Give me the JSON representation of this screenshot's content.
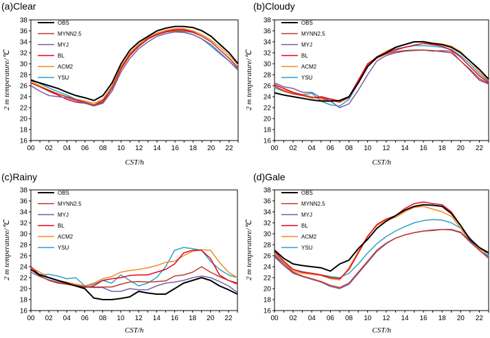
{
  "chart_data": [
    {
      "type": "line",
      "title": "(a)Clear",
      "xlabel": "CST/h",
      "ylabel": "2 m temperature/℃",
      "x": [
        0,
        1,
        2,
        3,
        4,
        5,
        6,
        7,
        8,
        9,
        10,
        11,
        12,
        13,
        14,
        15,
        16,
        17,
        18,
        19,
        20,
        21,
        22,
        23
      ],
      "x_tick_labels": [
        "00",
        "02",
        "04",
        "06",
        "08",
        "10",
        "12",
        "14",
        "16",
        "18",
        "20",
        "22"
      ],
      "x_tick_values": [
        0,
        2,
        4,
        6,
        8,
        10,
        12,
        14,
        16,
        18,
        20,
        22
      ],
      "xlim": [
        0,
        23
      ],
      "ylim": [
        16,
        38
      ],
      "y_ticks": [
        16,
        18,
        20,
        22,
        24,
        26,
        28,
        30,
        32,
        34,
        36,
        38
      ],
      "legend": "top-left",
      "series": [
        {
          "name": "OBS",
          "color": "#000000",
          "values": [
            27,
            26.5,
            26,
            25.5,
            24.8,
            24.2,
            23.8,
            23.3,
            24.2,
            26.5,
            30,
            32.5,
            34,
            35,
            36,
            36.5,
            36.8,
            36.8,
            36.6,
            36,
            35,
            33.5,
            32,
            30
          ]
        },
        {
          "name": "MYNN2.5",
          "color": "#c0392b",
          "values": [
            26.5,
            25.8,
            25.2,
            24.5,
            24,
            23.5,
            23,
            22.5,
            23,
            25.5,
            29,
            31.5,
            33.2,
            34.5,
            35.3,
            35.8,
            36,
            36,
            35.7,
            35,
            34,
            32.5,
            31,
            29.2
          ]
        },
        {
          "name": "MYJ",
          "color": "#7b5ba6",
          "values": [
            26,
            25,
            24.2,
            24,
            23.8,
            23.3,
            22.8,
            22.3,
            22.8,
            25,
            28.5,
            31,
            32.8,
            34,
            35,
            35.5,
            35.8,
            35.7,
            35.3,
            34.5,
            33.5,
            32,
            30.5,
            28.8
          ]
        },
        {
          "name": "BL",
          "color": "#e8001c",
          "values": [
            26.5,
            25.8,
            25,
            24.3,
            23.5,
            23,
            22.8,
            22.5,
            23.3,
            25.5,
            29.2,
            31.7,
            33.3,
            34.6,
            35.4,
            35.9,
            36.2,
            36.2,
            35.8,
            35,
            34,
            32.5,
            31,
            29.3
          ]
        },
        {
          "name": "ACM2",
          "color": "#f28b1e",
          "values": [
            26.8,
            26,
            25.2,
            24.5,
            24,
            23.5,
            23.2,
            22.8,
            23.5,
            26,
            29.5,
            32,
            33.6,
            34.8,
            35.6,
            36.1,
            36.4,
            36.4,
            36,
            35.3,
            34.3,
            33,
            31.5,
            29.8
          ]
        },
        {
          "name": "YSU",
          "color": "#2aa3c4",
          "values": [
            27.2,
            26.4,
            25.6,
            24.9,
            24.3,
            23.5,
            22.8,
            22.4,
            23,
            25.8,
            29.3,
            31.8,
            33.4,
            34.5,
            35.3,
            35.8,
            36,
            35.8,
            35.3,
            34.5,
            33.2,
            31.8,
            30.5,
            29
          ]
        }
      ]
    },
    {
      "type": "line",
      "title": "(b)Cloudy",
      "xlabel": "CST/h",
      "ylabel": "2 m temperature/℃",
      "x": [
        0,
        1,
        2,
        3,
        4,
        5,
        6,
        7,
        8,
        9,
        10,
        11,
        12,
        13,
        14,
        15,
        16,
        17,
        18,
        19,
        20,
        21,
        22,
        23
      ],
      "x_tick_labels": [
        "00",
        "02",
        "04",
        "06",
        "08",
        "10",
        "12",
        "14",
        "16",
        "18",
        "20",
        "22"
      ],
      "x_tick_values": [
        0,
        2,
        4,
        6,
        8,
        10,
        12,
        14,
        16,
        18,
        20,
        22
      ],
      "xlim": [
        0,
        23
      ],
      "ylim": [
        16,
        38
      ],
      "y_ticks": [
        16,
        18,
        20,
        22,
        24,
        26,
        28,
        30,
        32,
        34,
        36,
        38
      ],
      "legend": "top-left",
      "series": [
        {
          "name": "OBS",
          "color": "#000000",
          "values": [
            24.7,
            24.3,
            24,
            23.7,
            23.4,
            23.2,
            23.2,
            23.3,
            24,
            26.5,
            29.5,
            31.2,
            32,
            33,
            33.5,
            34,
            34,
            33.7,
            33.5,
            33,
            32,
            30.5,
            29,
            27.2
          ]
        },
        {
          "name": "MYNN2.5",
          "color": "#c0392b",
          "values": [
            26,
            25,
            24.5,
            24.2,
            23.8,
            23.8,
            23.5,
            23,
            23.8,
            26.5,
            29.5,
            31,
            31.8,
            32.2,
            32.4,
            32.5,
            32.5,
            32.4,
            32.2,
            32,
            30.5,
            29,
            27.3,
            26.4
          ]
        },
        {
          "name": "MYJ",
          "color": "#7b5ba6",
          "values": [
            26.5,
            25.8,
            25.5,
            24.8,
            24.8,
            23.8,
            23.2,
            22,
            22.7,
            25.2,
            28,
            30.5,
            31.5,
            32,
            32.3,
            32.4,
            32.5,
            32.3,
            32.4,
            32.3,
            30.5,
            28.8,
            27,
            26.3
          ]
        },
        {
          "name": "BL",
          "color": "#e8001c",
          "values": [
            26.2,
            25.5,
            24.8,
            24.3,
            23.8,
            24,
            23.6,
            23.2,
            24,
            27,
            30,
            31.2,
            32,
            32.5,
            33,
            33.4,
            33.7,
            33.5,
            33.2,
            32.5,
            31.2,
            29.5,
            27.8,
            26.6
          ]
        },
        {
          "name": "ACM2",
          "color": "#f28b1e",
          "values": [
            25.8,
            25.2,
            24.7,
            24.4,
            24,
            23.5,
            23.2,
            23,
            24,
            26.8,
            29.8,
            31.3,
            32.3,
            33,
            33.5,
            34,
            34.1,
            33.8,
            33.6,
            33.2,
            32.2,
            30.5,
            28.6,
            27
          ]
        },
        {
          "name": "YSU",
          "color": "#2aa3c4",
          "values": [
            25.6,
            25,
            24.6,
            24.4,
            24.6,
            23.2,
            22.5,
            22.3,
            23.5,
            26.5,
            29.8,
            31.3,
            32.2,
            32.7,
            33,
            33.3,
            33.3,
            33.2,
            33,
            32.6,
            31.5,
            30,
            28.2,
            26.8
          ]
        }
      ]
    },
    {
      "type": "line",
      "title": "(c)Rainy",
      "xlabel": "CST/h",
      "ylabel": "2 m temperature/℃",
      "x": [
        0,
        1,
        2,
        3,
        4,
        5,
        6,
        7,
        8,
        9,
        10,
        11,
        12,
        13,
        14,
        15,
        16,
        17,
        18,
        19,
        20,
        21,
        22,
        23
      ],
      "x_tick_labels": [
        "00",
        "02",
        "04",
        "06",
        "08",
        "10",
        "12",
        "14",
        "16",
        "18",
        "20",
        "22"
      ],
      "x_tick_values": [
        0,
        2,
        4,
        6,
        8,
        10,
        12,
        14,
        16,
        18,
        20,
        22
      ],
      "xlim": [
        0,
        23
      ],
      "ylim": [
        16,
        38
      ],
      "y_ticks": [
        16,
        18,
        20,
        22,
        24,
        26,
        28,
        30,
        32,
        34,
        36,
        38
      ],
      "legend": "top-left",
      "series": [
        {
          "name": "OBS",
          "color": "#000000",
          "values": [
            23.5,
            22.5,
            22,
            21.5,
            21,
            20.5,
            20,
            18.3,
            18,
            18,
            18.2,
            18.5,
            19.5,
            19.2,
            19,
            19,
            20,
            21,
            21.5,
            22,
            21.5,
            20.5,
            19.8,
            19
          ]
        },
        {
          "name": "MYNN2.5",
          "color": "#c0392b",
          "values": [
            23.5,
            22.3,
            21.5,
            21,
            20.8,
            20.6,
            20.4,
            20.3,
            20.3,
            20.3,
            20.8,
            21.2,
            21.3,
            21.2,
            21.3,
            21.4,
            22.3,
            22.5,
            23,
            24,
            23,
            22.2,
            21.5,
            20.8
          ]
        },
        {
          "name": "MYJ",
          "color": "#7b5ba6",
          "values": [
            23,
            22.2,
            21.6,
            21.2,
            20.8,
            20.5,
            20.3,
            20.2,
            20.2,
            19.5,
            19.5,
            20,
            19.8,
            19.8,
            20.5,
            21,
            21.2,
            21.5,
            22,
            22.3,
            22,
            21.3,
            20.5,
            19.3
          ]
        },
        {
          "name": "BL",
          "color": "#e8001c",
          "values": [
            24,
            22.5,
            22,
            21.5,
            21,
            20.5,
            20.2,
            20.5,
            21.5,
            21.8,
            22,
            22.4,
            22.5,
            22.5,
            23,
            23.5,
            24.5,
            26.5,
            27,
            27,
            25.5,
            22.5,
            21.5,
            21
          ]
        },
        {
          "name": "ACM2",
          "color": "#f28b1e",
          "values": [
            23.8,
            23,
            22,
            21.5,
            21.2,
            20.8,
            20.5,
            21,
            21.8,
            22.2,
            23,
            23.3,
            23.5,
            23.8,
            24.2,
            24.8,
            25,
            26,
            26.8,
            27.1,
            27,
            24.8,
            23,
            22
          ]
        },
        {
          "name": "YSU",
          "color": "#2aa3c4",
          "values": [
            23.5,
            22.6,
            22.6,
            22.3,
            21.8,
            22,
            20.5,
            20.8,
            21.5,
            21,
            22.5,
            21.5,
            20.5,
            21,
            22,
            24,
            27,
            27.5,
            27.3,
            27,
            25,
            23.5,
            22.5,
            22
          ]
        }
      ]
    },
    {
      "type": "line",
      "title": "(d)Gale",
      "xlabel": "CST/h",
      "ylabel": "2 m temperature/℃",
      "x": [
        0,
        1,
        2,
        3,
        4,
        5,
        6,
        7,
        8,
        9,
        10,
        11,
        12,
        13,
        14,
        15,
        16,
        17,
        18,
        19,
        20,
        21,
        22,
        23
      ],
      "x_tick_labels": [
        "00",
        "02",
        "04",
        "06",
        "08",
        "10",
        "12",
        "14",
        "16",
        "18",
        "20",
        "22"
      ],
      "x_tick_values": [
        0,
        2,
        4,
        6,
        8,
        10,
        12,
        14,
        16,
        18,
        20,
        22
      ],
      "xlim": [
        0,
        23
      ],
      "ylim": [
        16,
        38
      ],
      "y_ticks": [
        16,
        18,
        20,
        22,
        24,
        26,
        28,
        30,
        32,
        34,
        36,
        38
      ],
      "legend": "top-left",
      "series": [
        {
          "name": "OBS",
          "color": "#000000",
          "values": [
            27,
            25.5,
            24.5,
            24.2,
            24,
            23.8,
            23.2,
            24.5,
            25.2,
            27.3,
            29,
            31,
            32.3,
            33.3,
            34.3,
            35,
            35.3,
            35.2,
            35,
            33.7,
            31.5,
            29,
            27.5,
            26.5
          ]
        },
        {
          "name": "MYNN2.5",
          "color": "#c0392b",
          "values": [
            26,
            24.5,
            23,
            22.3,
            21.8,
            21.3,
            20.6,
            20.2,
            21,
            23,
            25,
            27,
            28.3,
            29.2,
            29.8,
            30.2,
            30.5,
            30.6,
            30.8,
            30.7,
            30.2,
            28.5,
            27,
            25.8
          ]
        },
        {
          "name": "MYJ",
          "color": "#7b5ba6",
          "values": [
            25.8,
            24.2,
            22.8,
            22.2,
            21.7,
            21.2,
            20.4,
            20,
            20.8,
            22.8,
            24.8,
            26.8,
            28.2,
            29.2,
            29.8,
            30.2,
            30.5,
            30.7,
            30.8,
            30.8,
            30.3,
            28.7,
            27,
            25.5
          ]
        },
        {
          "name": "BL",
          "color": "#e8001c",
          "values": [
            26.8,
            25,
            23.5,
            23,
            22.8,
            22.5,
            22,
            21.8,
            23.5,
            26.5,
            29.5,
            31.7,
            32.7,
            33.3,
            34.6,
            35.5,
            35.8,
            35.5,
            35.3,
            34,
            31.5,
            28.8,
            27.5,
            26.6
          ]
        },
        {
          "name": "ACM2",
          "color": "#f28b1e",
          "values": [
            26.5,
            24.8,
            23.2,
            22.8,
            22.6,
            22.4,
            21.8,
            21.6,
            23.8,
            26.8,
            29.6,
            31.5,
            32.5,
            33,
            34,
            34.8,
            35,
            34.5,
            34,
            33.2,
            31,
            28.5,
            27.2,
            26.5
          ]
        },
        {
          "name": "YSU",
          "color": "#2aa3c4",
          "values": [
            26.2,
            24.8,
            23.5,
            23.1,
            22.8,
            22.5,
            22.2,
            22,
            22.8,
            24.5,
            26.5,
            28.2,
            29.5,
            30.5,
            31.3,
            32,
            32.4,
            32.6,
            32.5,
            32,
            31,
            29.2,
            27.5,
            26
          ]
        }
      ]
    }
  ]
}
